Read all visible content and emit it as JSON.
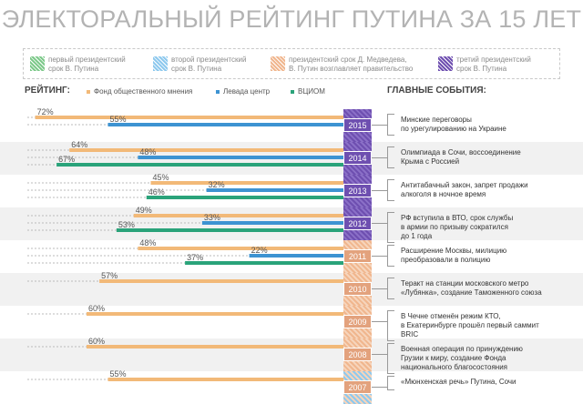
{
  "title": "ЭЛЕКТОРАЛЬНЫЙ РЕЙТИНГ ПУТИНА ЗА 15 ЛЕТ",
  "terms": [
    {
      "label_1": "первый президентский",
      "label_2": "срок В. Путина",
      "color": "#7dc98a"
    },
    {
      "label_1": "второй президентский",
      "label_2": "срок В. Путина",
      "color": "#8ec9ee"
    },
    {
      "label_1": "президентский срок Д. Медведева,",
      "label_2": "В. Путин возглавляет правительство",
      "color": "#f0b68e"
    },
    {
      "label_1": "третий президентский",
      "label_2": "срок В. Путина",
      "color": "#6e4fb0"
    }
  ],
  "ratings_label": "РЕЙТИНГ:",
  "sources": [
    {
      "label": "Фонд общественного мнения",
      "color": "#f2b978"
    },
    {
      "label": "Левада центр",
      "color": "#3d93d2"
    },
    {
      "label": "ВЦИОМ",
      "color": "#2aa37a"
    }
  ],
  "events_label": "ГЛАВНЫЕ СОБЫТИЯ:",
  "events": [
    {
      "year": "2015",
      "text": [
        "Минские переговоры",
        "по урегулированию на Украине"
      ]
    },
    {
      "year": "2014",
      "text": [
        "Олимпиада в Сочи, воссоединение",
        "Крыма с Россией"
      ]
    },
    {
      "year": "2013",
      "text": [
        "Антитабачный закон, запрет продажи",
        "алкоголя в ночное время"
      ]
    },
    {
      "year": "2012",
      "text": [
        "РФ вступила в ВТО, срок службы",
        "в армии по призыву сократился",
        "до 1 года"
      ]
    },
    {
      "year": "2011",
      "text": [
        "Расширение Москвы, милицию",
        "преобразовали в полицию"
      ]
    },
    {
      "year": "2010",
      "text": [
        "Теракт на станции московского метро",
        "«Лубянка», создание Таможенного союза"
      ]
    },
    {
      "year": "2009",
      "text": [
        "В Чечне отменён режим КТО,",
        "в Екатеринбурге прошёл первый саммит",
        "BRIC"
      ]
    },
    {
      "year": "2008",
      "text": [
        "Военная операция по принуждению",
        "Грузии к миру, создание Фонда",
        "национального благосостояния"
      ]
    },
    {
      "year": "2007",
      "text": [
        "«Мюнхенская речь» Путина, Сочи"
      ]
    }
  ],
  "chart_data": {
    "type": "bar",
    "orientation": "horizontal",
    "value_unit": "%",
    "categories": [
      "2015",
      "2014",
      "2013",
      "2012",
      "2011",
      "2010",
      "2009",
      "2008",
      "2007"
    ],
    "series": [
      {
        "name": "Фонд общественного мнения",
        "color": "#f2b978",
        "values": [
          72,
          64,
          45,
          49,
          48,
          57,
          60,
          60,
          55
        ]
      },
      {
        "name": "Левада центр",
        "color": "#3d93d2",
        "values": [
          55,
          48,
          32,
          33,
          22,
          null,
          null,
          null,
          null
        ]
      },
      {
        "name": "ВЦИОМ",
        "color": "#2aa37a",
        "values": [
          null,
          67,
          46,
          53,
          37,
          null,
          null,
          null,
          null
        ]
      }
    ]
  }
}
